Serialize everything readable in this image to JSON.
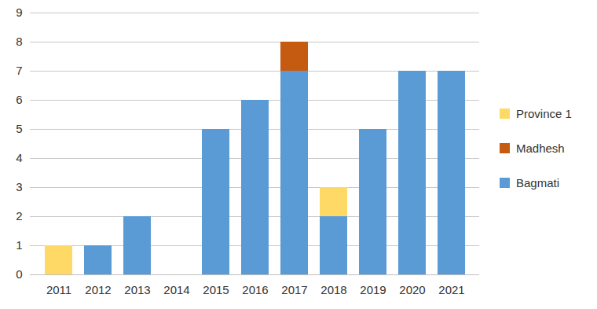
{
  "chart_data": {
    "type": "bar",
    "stacked": true,
    "grid": true,
    "legend": "right",
    "categories": [
      "2011",
      "2012",
      "2013",
      "2014",
      "2015",
      "2016",
      "2017",
      "2018",
      "2019",
      "2020",
      "2021"
    ],
    "series": [
      {
        "name": "Bagmati",
        "color": "#5b9bd5",
        "values": [
          0,
          1,
          2,
          0,
          5,
          6,
          7,
          2,
          5,
          7,
          7
        ]
      },
      {
        "name": "Madhesh",
        "color": "#c55a11",
        "values": [
          0,
          0,
          0,
          0,
          0,
          0,
          1,
          0,
          0,
          0,
          0
        ]
      },
      {
        "name": "Province 1",
        "color": "#ffd966",
        "values": [
          1,
          0,
          0,
          0,
          0,
          0,
          0,
          1,
          0,
          0,
          0
        ]
      }
    ],
    "ylim": [
      0,
      9
    ],
    "yticks": [
      0,
      1,
      2,
      3,
      4,
      5,
      6,
      7,
      8,
      9
    ]
  }
}
